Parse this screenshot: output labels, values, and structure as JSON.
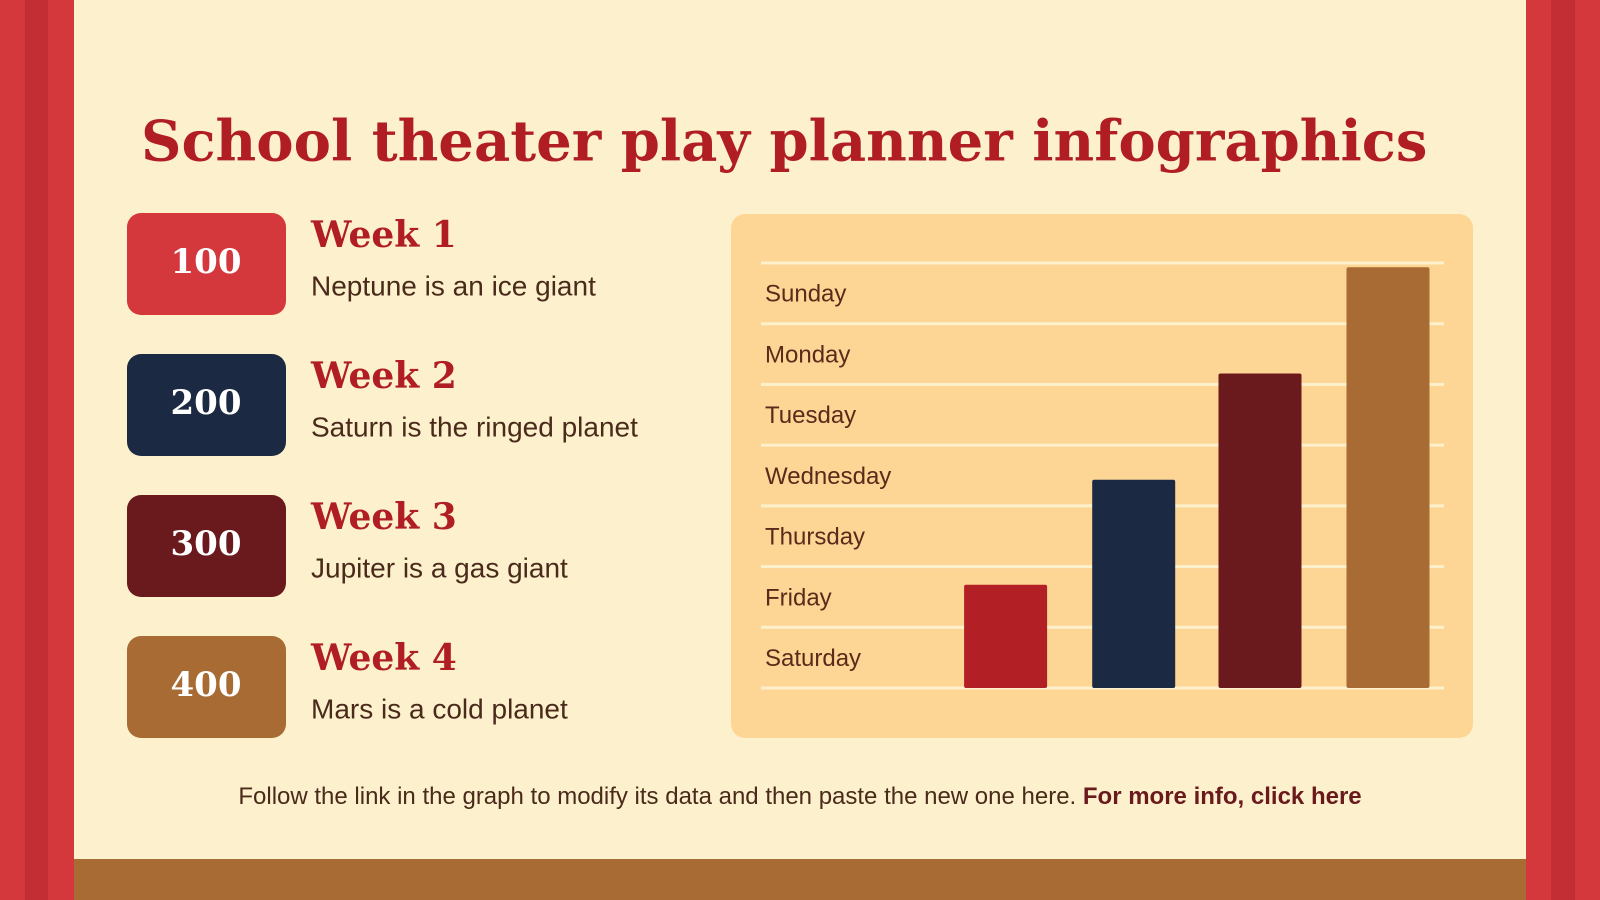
{
  "title": "School theater play planner infographics",
  "cards": [
    {
      "number": 100,
      "heading": "Week 1",
      "text": "Neptune is an ice giant",
      "color": "#d4373c"
    },
    {
      "number": 200,
      "heading": "Week 2",
      "text": "Saturn is the ringed planet",
      "color": "#1b2a42"
    },
    {
      "number": 300,
      "heading": "Week 3",
      "text": "Jupiter is a gas giant",
      "color": "#6a1a1c"
    },
    {
      "number": 400,
      "heading": "Week 4",
      "text": "Mars is a cold planet",
      "color": "#a86b34"
    }
  ],
  "chart_data": {
    "type": "bar",
    "categories": [
      null,
      null,
      null,
      null
    ],
    "values": [
      1.7,
      3.43,
      5.18,
      6.93
    ],
    "colors": [
      "#b21f24",
      "#1b2a42",
      "#6a1a1c",
      "#a86b34"
    ],
    "ylim": [
      0,
      7
    ],
    "yticks": [
      0,
      1,
      2,
      3,
      4,
      5,
      6,
      7
    ],
    "grid": true,
    "ycategories": [
      "Saturday",
      "Friday",
      "Thursday",
      "Wednesday",
      "Tuesday",
      "Monday",
      "Sunday"
    ]
  },
  "footer": {
    "text": "Follow the link in the graph to modify its data and then paste the new one here.",
    "link": "For more info, click here"
  }
}
